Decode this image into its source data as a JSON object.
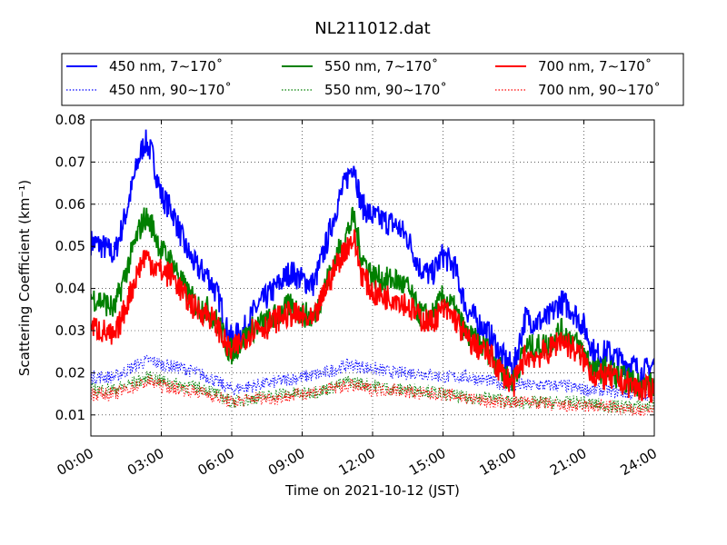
{
  "chart_data": {
    "type": "line",
    "title": "NL211012.dat",
    "xlabel": "Time on 2021-10-12 (JST)",
    "ylabel": "Scattering Coefficient (km⁻¹)",
    "xlim": [
      0,
      24
    ],
    "ylim": [
      0.005,
      0.08
    ],
    "x_ticks": [
      0,
      3,
      6,
      9,
      12,
      15,
      18,
      21,
      24
    ],
    "x_tick_labels": [
      "00:00",
      "03:00",
      "06:00",
      "09:00",
      "12:00",
      "15:00",
      "18:00",
      "21:00",
      "24:00"
    ],
    "y_ticks": [
      0.01,
      0.02,
      0.03,
      0.04,
      0.05,
      0.06,
      0.07,
      0.08
    ],
    "y_tick_labels": [
      "0.01",
      "0.02",
      "0.03",
      "0.04",
      "0.05",
      "0.06",
      "0.07",
      "0.08"
    ],
    "grid": true,
    "legend_position": "top, above plot, 3 columns",
    "series": [
      {
        "name": "450 nm, 7∼170˚",
        "color": "#0000ff",
        "style": "solid",
        "x": [
          0,
          0.5,
          1,
          1.5,
          2,
          2.3,
          2.6,
          3,
          3.5,
          4,
          4.5,
          5,
          5.5,
          5.8,
          6,
          6.5,
          7,
          7.5,
          8,
          8.5,
          9,
          9.5,
          10,
          10.5,
          10.9,
          11.2,
          11.5,
          12,
          12.5,
          13,
          13.5,
          14,
          14.5,
          15,
          15.5,
          16,
          16.5,
          17,
          17.5,
          18,
          18.5,
          19,
          19.5,
          20,
          20.5,
          21,
          21.5,
          22,
          22.5,
          23,
          23.5,
          24
        ],
        "y": [
          0.051,
          0.05,
          0.048,
          0.058,
          0.07,
          0.075,
          0.072,
          0.062,
          0.058,
          0.05,
          0.045,
          0.043,
          0.037,
          0.03,
          0.028,
          0.03,
          0.035,
          0.038,
          0.041,
          0.044,
          0.042,
          0.041,
          0.05,
          0.06,
          0.066,
          0.07,
          0.06,
          0.057,
          0.056,
          0.055,
          0.052,
          0.045,
          0.043,
          0.048,
          0.045,
          0.035,
          0.032,
          0.029,
          0.024,
          0.021,
          0.033,
          0.032,
          0.033,
          0.037,
          0.035,
          0.031,
          0.024,
          0.025,
          0.023,
          0.022,
          0.02,
          0.022
        ]
      },
      {
        "name": "450 nm, 90∼170˚",
        "color": "#0000ff",
        "style": "dotted",
        "x": [
          0,
          1,
          2,
          2.5,
          3,
          4,
          5,
          6,
          7,
          8,
          9,
          10,
          11,
          12,
          13,
          14,
          15,
          16,
          17,
          18,
          19,
          20,
          21,
          22,
          23,
          24
        ],
        "y": [
          0.019,
          0.019,
          0.022,
          0.023,
          0.022,
          0.021,
          0.019,
          0.016,
          0.017,
          0.018,
          0.019,
          0.02,
          0.022,
          0.021,
          0.02,
          0.02,
          0.019,
          0.019,
          0.018,
          0.017,
          0.017,
          0.017,
          0.016,
          0.016,
          0.015,
          0.015
        ]
      },
      {
        "name": "550 nm, 7∼170˚",
        "color": "#008000",
        "style": "solid",
        "x": [
          0,
          0.5,
          1,
          1.5,
          2,
          2.3,
          2.6,
          3,
          3.5,
          4,
          4.5,
          5,
          5.5,
          5.8,
          6,
          6.5,
          7,
          7.5,
          8,
          8.5,
          9,
          9.5,
          10,
          10.5,
          10.9,
          11.2,
          11.5,
          12,
          12.5,
          13,
          13.5,
          14,
          14.5,
          15,
          15.5,
          16,
          16.5,
          17,
          17.5,
          18,
          18.5,
          19,
          19.5,
          20,
          20.5,
          21,
          21.5,
          22,
          22.5,
          23,
          23.5,
          24
        ],
        "y": [
          0.038,
          0.037,
          0.035,
          0.044,
          0.053,
          0.057,
          0.055,
          0.049,
          0.046,
          0.04,
          0.036,
          0.035,
          0.031,
          0.026,
          0.025,
          0.028,
          0.031,
          0.032,
          0.034,
          0.036,
          0.034,
          0.033,
          0.041,
          0.048,
          0.053,
          0.057,
          0.048,
          0.043,
          0.042,
          0.042,
          0.04,
          0.034,
          0.033,
          0.038,
          0.035,
          0.029,
          0.027,
          0.025,
          0.02,
          0.018,
          0.026,
          0.026,
          0.027,
          0.03,
          0.028,
          0.025,
          0.02,
          0.021,
          0.019,
          0.018,
          0.017,
          0.017
        ]
      },
      {
        "name": "550 nm, 90∼170˚",
        "color": "#008000",
        "style": "dotted",
        "x": [
          0,
          1,
          2,
          2.5,
          3,
          4,
          5,
          6,
          7,
          8,
          9,
          10,
          11,
          12,
          13,
          14,
          15,
          16,
          17,
          18,
          19,
          20,
          21,
          22,
          23,
          24
        ],
        "y": [
          0.016,
          0.016,
          0.018,
          0.019,
          0.018,
          0.017,
          0.016,
          0.013,
          0.014,
          0.015,
          0.015,
          0.016,
          0.018,
          0.017,
          0.016,
          0.016,
          0.015,
          0.014,
          0.014,
          0.013,
          0.013,
          0.013,
          0.013,
          0.012,
          0.012,
          0.012
        ]
      },
      {
        "name": "700 nm, 7∼170˚",
        "color": "#ff0000",
        "style": "solid",
        "x": [
          0,
          0.5,
          1,
          1.5,
          2,
          2.3,
          2.6,
          3,
          3.5,
          4,
          4.5,
          5,
          5.5,
          5.8,
          6,
          6.5,
          7,
          7.5,
          8,
          8.5,
          9,
          9.5,
          10,
          10.5,
          10.9,
          11.2,
          11.5,
          12,
          12.5,
          13,
          13.5,
          14,
          14.5,
          15,
          15.5,
          16,
          16.5,
          17,
          17.5,
          18,
          18.5,
          19,
          19.5,
          20,
          20.5,
          21,
          21.5,
          22,
          22.5,
          23,
          23.5,
          24
        ],
        "y": [
          0.031,
          0.03,
          0.028,
          0.036,
          0.044,
          0.048,
          0.046,
          0.044,
          0.043,
          0.038,
          0.035,
          0.034,
          0.03,
          0.026,
          0.025,
          0.028,
          0.031,
          0.031,
          0.033,
          0.034,
          0.033,
          0.032,
          0.04,
          0.046,
          0.05,
          0.052,
          0.044,
          0.039,
          0.038,
          0.038,
          0.036,
          0.033,
          0.032,
          0.035,
          0.033,
          0.028,
          0.026,
          0.024,
          0.02,
          0.017,
          0.024,
          0.024,
          0.025,
          0.028,
          0.026,
          0.023,
          0.019,
          0.019,
          0.018,
          0.017,
          0.016,
          0.016
        ]
      },
      {
        "name": "700 nm, 90∼170˚",
        "color": "#ff0000",
        "style": "dotted",
        "x": [
          0,
          1,
          2,
          2.5,
          3,
          4,
          5,
          6,
          7,
          8,
          9,
          10,
          11,
          12,
          13,
          14,
          15,
          16,
          17,
          18,
          19,
          20,
          21,
          22,
          23,
          24
        ],
        "y": [
          0.015,
          0.015,
          0.017,
          0.018,
          0.017,
          0.016,
          0.015,
          0.013,
          0.014,
          0.014,
          0.015,
          0.016,
          0.017,
          0.016,
          0.016,
          0.015,
          0.015,
          0.014,
          0.013,
          0.013,
          0.013,
          0.012,
          0.012,
          0.012,
          0.011,
          0.011
        ]
      }
    ]
  }
}
